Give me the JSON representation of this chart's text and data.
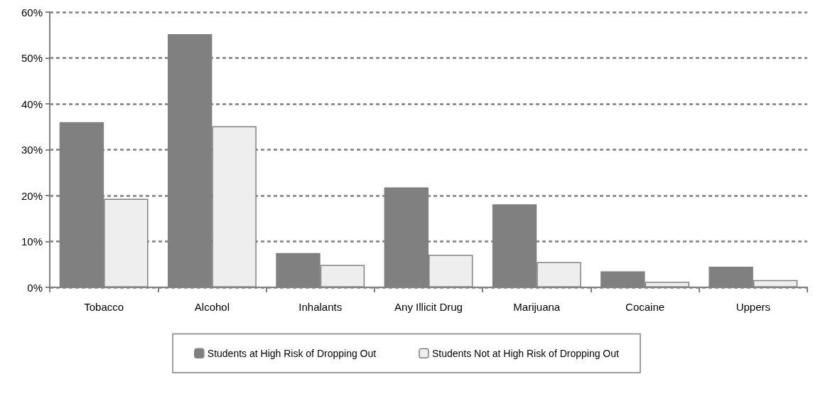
{
  "chart_data": {
    "type": "bar",
    "categories": [
      "Tobacco",
      "Alcohol",
      "Inhalants",
      "Any Illicit Drug",
      "Marijuana",
      "Cocaine",
      "Uppers"
    ],
    "series": [
      {
        "name": "Students at High Risk of Dropping Out",
        "color": "#808080",
        "values": [
          36,
          55.2,
          7.5,
          21.8,
          18.1,
          3.5,
          4.5
        ]
      },
      {
        "name": "Students Not at High Risk of Dropping Out",
        "color": "#eeeeee",
        "values": [
          19.3,
          35.1,
          4.9,
          7.1,
          5.5,
          1.2,
          1.6
        ]
      }
    ],
    "ylim": [
      0,
      60
    ],
    "yticks": [
      {
        "value": 0,
        "label": "0%"
      },
      {
        "value": 10,
        "label": "10%"
      },
      {
        "value": 20,
        "label": "20%"
      },
      {
        "value": 30,
        "label": "30%"
      },
      {
        "value": 40,
        "label": "40%"
      },
      {
        "value": 50,
        "label": "50%"
      },
      {
        "value": 60,
        "label": "60%"
      }
    ],
    "grid": "y",
    "legend": "bottom"
  }
}
